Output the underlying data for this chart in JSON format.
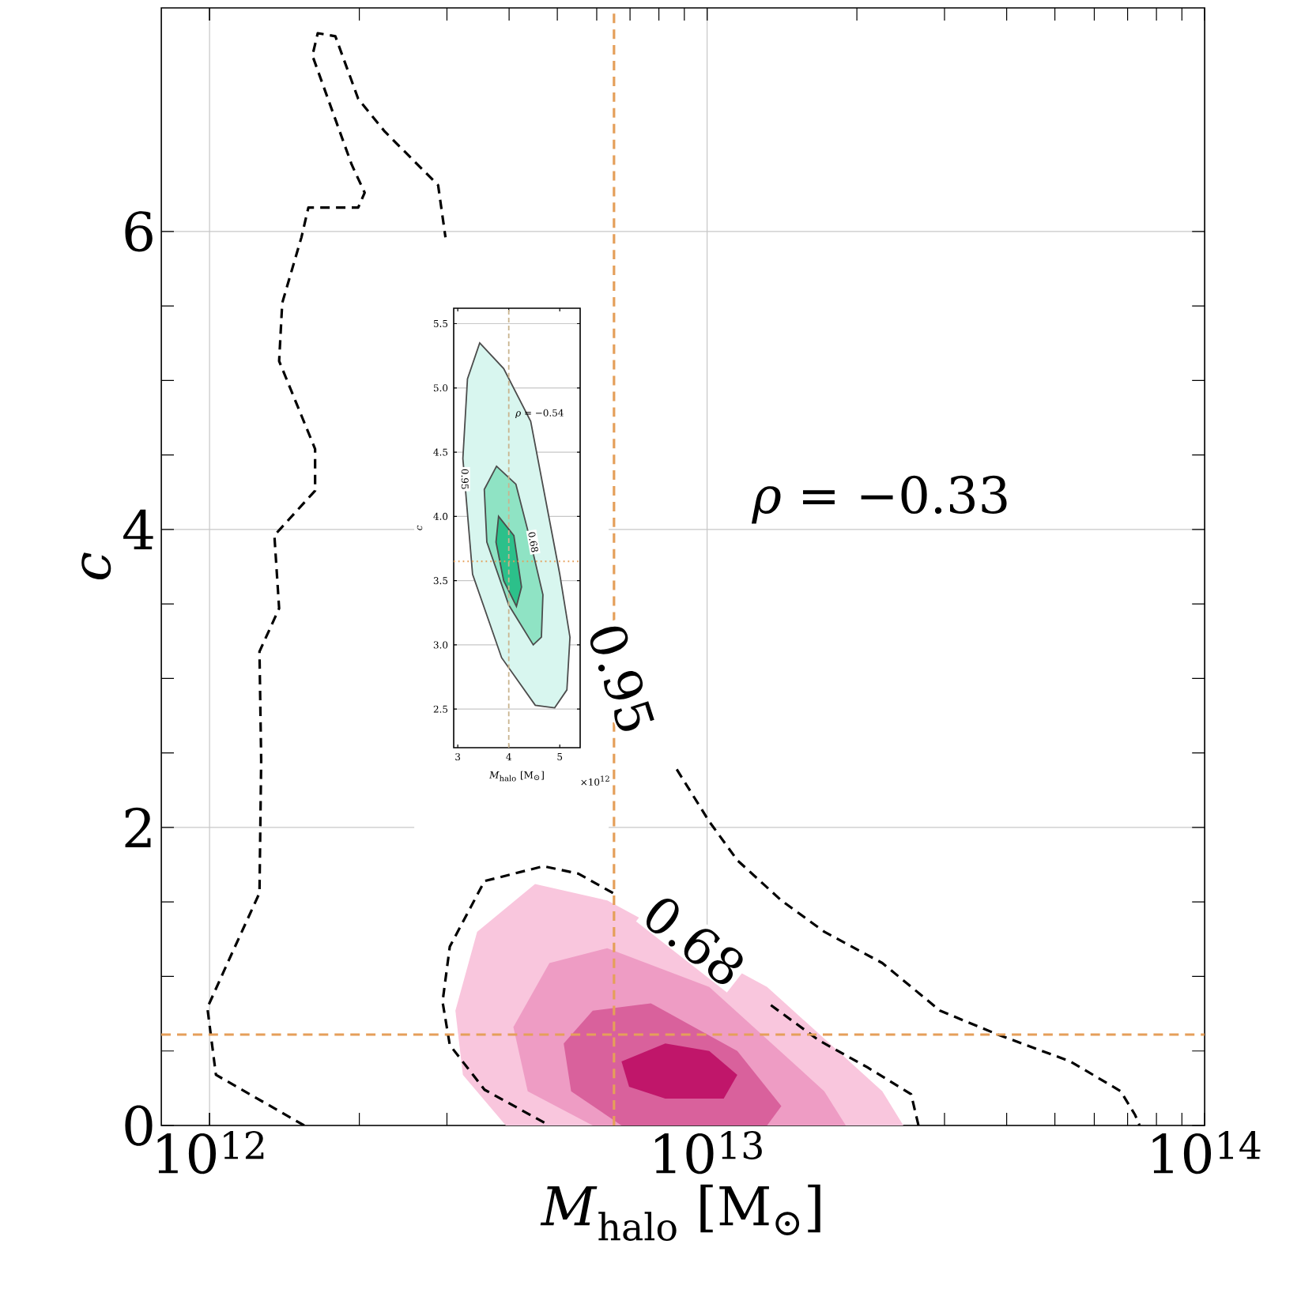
{
  "chart_data": [
    {
      "type": "line",
      "xlabel": "*M*$_{halo}$ [M$_{⊙}$]",
      "ylabel": "c",
      "log": "x",
      "grid": true,
      "line_style": "dashed",
      "xlim": [
        800000000000.0,
        100000000000000.0
      ],
      "ylim": [
        0,
        7.5
      ],
      "xticks": [
        {
          "value": 1000000000000.0,
          "label": "10$^{12}$"
        },
        {
          "value": 10000000000000.0,
          "label": "10$^{13}$"
        },
        {
          "value": 100000000000000.0,
          "label": "10$^{14}$"
        }
      ],
      "yticks": [
        0,
        2,
        4,
        6
      ],
      "series": [
        {
          "type": "area",
          "color": "#f9c6dd",
          "x": [
            3120000000000.0,
            3450000000000.0,
            4510000000000.0,
            6300000000000.0,
            13200000000000.0,
            22500000000000.0,
            24800000000000.0,
            3940000000000.0,
            3230000000000.0
          ],
          "values": [
            0.77,
            1.3,
            1.62,
            1.51,
            0.93,
            0.23,
            0,
            0,
            0.34
          ]
        },
        {
          "type": "area",
          "color": "#ee9cc4",
          "x": [
            4080000000000.0,
            4820000000000.0,
            6300000000000.0,
            10100000000000.0,
            17200000000000.0,
            19000000000000.0,
            5890000000000.0,
            4360000000000.0
          ],
          "values": [
            0.66,
            1.09,
            1.19,
            0.93,
            0.23,
            0,
            0,
            0.23
          ]
        },
        {
          "type": "area",
          "color": "#d9619c",
          "x": [
            5150000000000.0,
            5890000000000.0,
            7710000000000.0,
            11500000000000.0,
            14100000000000.0,
            13200000000000.0,
            6730000000000.0,
            5330000000000.0
          ],
          "values": [
            0.55,
            0.77,
            0.82,
            0.5,
            0.13,
            0,
            0,
            0.23
          ]
        },
        {
          "type": "area",
          "color": "#c0166a",
          "x": [
            6730000000000.0,
            8240000000000.0,
            10100000000000.0,
            11500000000000.0,
            10800000000000.0,
            8240000000000.0,
            6970000000000.0
          ],
          "values": [
            0.43,
            0.55,
            0.5,
            0.34,
            0.18,
            0.18,
            0.26
          ]
        },
        {
          "color": "#000000",
          "x": [
            1550000000000.0,
            1030000000000.0,
            990000000000.0,
            1080000000000.0,
            1260000000000.0,
            1270000000000.0,
            1260000000000.0,
            1380000000000.0,
            1350000000000.0,
            1630000000000.0,
            1630000000000.0,
            1380000000000.0,
            1400000000000.0,
            1530000000000.0,
            1580000000000.0,
            1990000000000.0,
            2050000000000.0,
            1930000000000.0,
            1610000000000.0,
            1650000000000.0,
            1790000000000.0,
            1990000000000.0,
            2250000000000.0,
            2880000000000.0,
            2980000000000.0,
            5000000000000.0,
            8690000000000.0,
            10100000000000.0,
            11500000000000.0,
            14100000000000.0,
            17200000000000.0,
            22500000000000.0,
            29400000000000.0,
            38400000000000.0,
            53700000000000.0,
            67800000000000.0,
            72500000000000.0,
            74000000000000.0
          ],
          "values": [
            0,
            0.34,
            0.79,
            1.07,
            1.56,
            2.45,
            3.18,
            3.47,
            3.96,
            4.26,
            4.54,
            5.13,
            5.52,
            5.96,
            6.16,
            6.16,
            6.26,
            6.45,
            7.18,
            7.33,
            7.31,
            6.89,
            6.67,
            6.31,
            5.96,
            null,
            2.39,
            2.04,
            1.78,
            1.51,
            1.3,
            1.09,
            0.77,
            0.61,
            0.43,
            0.23,
            0.07,
            0
          ]
        },
        {
          "color": "#000000",
          "x": [
            6470000000000.0,
            5510000000000.0,
            4690000000000.0,
            3570000000000.0,
            3040000000000.0,
            2940000000000.0,
            3040000000000.0,
            3570000000000.0,
            4820000000000.0,
            15000000000000.0,
            26600000000000.0,
            25700000000000.0,
            21000000000000.0,
            16800000000000.0,
            13400000000000.0
          ],
          "values": [
            1.56,
            1.69,
            1.74,
            1.64,
            1.2,
            0.83,
            0.54,
            0.24,
            0,
            null,
            0,
            0.21,
            0.39,
            0.57,
            0.81
          ]
        }
      ],
      "ref_lines": [
        {
          "axis": "x",
          "value": 6500000000000.0,
          "color": "#e59f5a",
          "line_style": "dashed"
        },
        {
          "axis": "y",
          "value": 0.61,
          "color": "#e59f5a",
          "line_style": "dashed"
        }
      ],
      "annotations": [
        "*ρ* = −0.33",
        {
          "text": "0.95",
          "x": 6730000000000.0,
          "y": 3.0
        },
        {
          "text": "0.68",
          "x": 9420000000000.0,
          "y": 1.24
        }
      ]
    },
    {
      "type": "line",
      "xlabel": "*M*$_{halo}$ [M$_{⊙}$]",
      "ylabel": "c",
      "grid": "y",
      "line_style": "solid",
      "xlim": [
        2.92,
        5.4
      ],
      "ylim": [
        2.2,
        5.62
      ],
      "xticks": [
        3,
        4,
        5
      ],
      "yticks": [
        2.5,
        {
          "value": 3,
          "label": "3.0"
        },
        3.5,
        {
          "value": 4,
          "label": "4.0"
        },
        4.5,
        {
          "value": 5,
          "label": "5.0"
        },
        5.5
      ],
      "series": [
        {
          "type": "area",
          "color": "#d8f6ef",
          "x": [
            3.43,
            3.9,
            4.43,
            5.0,
            5.2,
            5.14,
            4.9,
            4.52,
            3.86,
            3.29,
            3.1,
            3.19
          ],
          "values": [
            5.35,
            5.15,
            4.74,
            3.55,
            3.06,
            2.65,
            2.51,
            2.53,
            2.9,
            3.55,
            4.45,
            5.07
          ]
        },
        {
          "type": "area",
          "color": "#8fe3c4",
          "x": [
            3.76,
            4.14,
            4.38,
            4.67,
            4.64,
            4.48,
            4.0,
            3.57,
            3.52
          ],
          "values": [
            4.39,
            4.25,
            3.88,
            3.39,
            3.06,
            3.0,
            3.31,
            3.8,
            4.21
          ]
        },
        {
          "type": "area",
          "color": "#2cc08a",
          "x": [
            3.8,
            4.1,
            4.25,
            4.15,
            3.9,
            3.75
          ],
          "values": [
            4.0,
            3.85,
            3.45,
            3.3,
            3.5,
            3.8
          ]
        }
      ],
      "ref_lines": [
        {
          "axis": "x",
          "value": 4,
          "color": "#c9b48f",
          "line_style": "dashed"
        },
        {
          "axis": "y",
          "value": 3.65,
          "color": "#e59f5a",
          "line_style": "dotted"
        }
      ],
      "annotations": [
        "*ρ* = −0.54",
        {
          "text": "0.95",
          "x": 3.14,
          "y": 4.29
        },
        {
          "text": "0.68",
          "x": 4.48,
          "y": 3.8
        },
        "×10$^{12}$"
      ]
    }
  ]
}
